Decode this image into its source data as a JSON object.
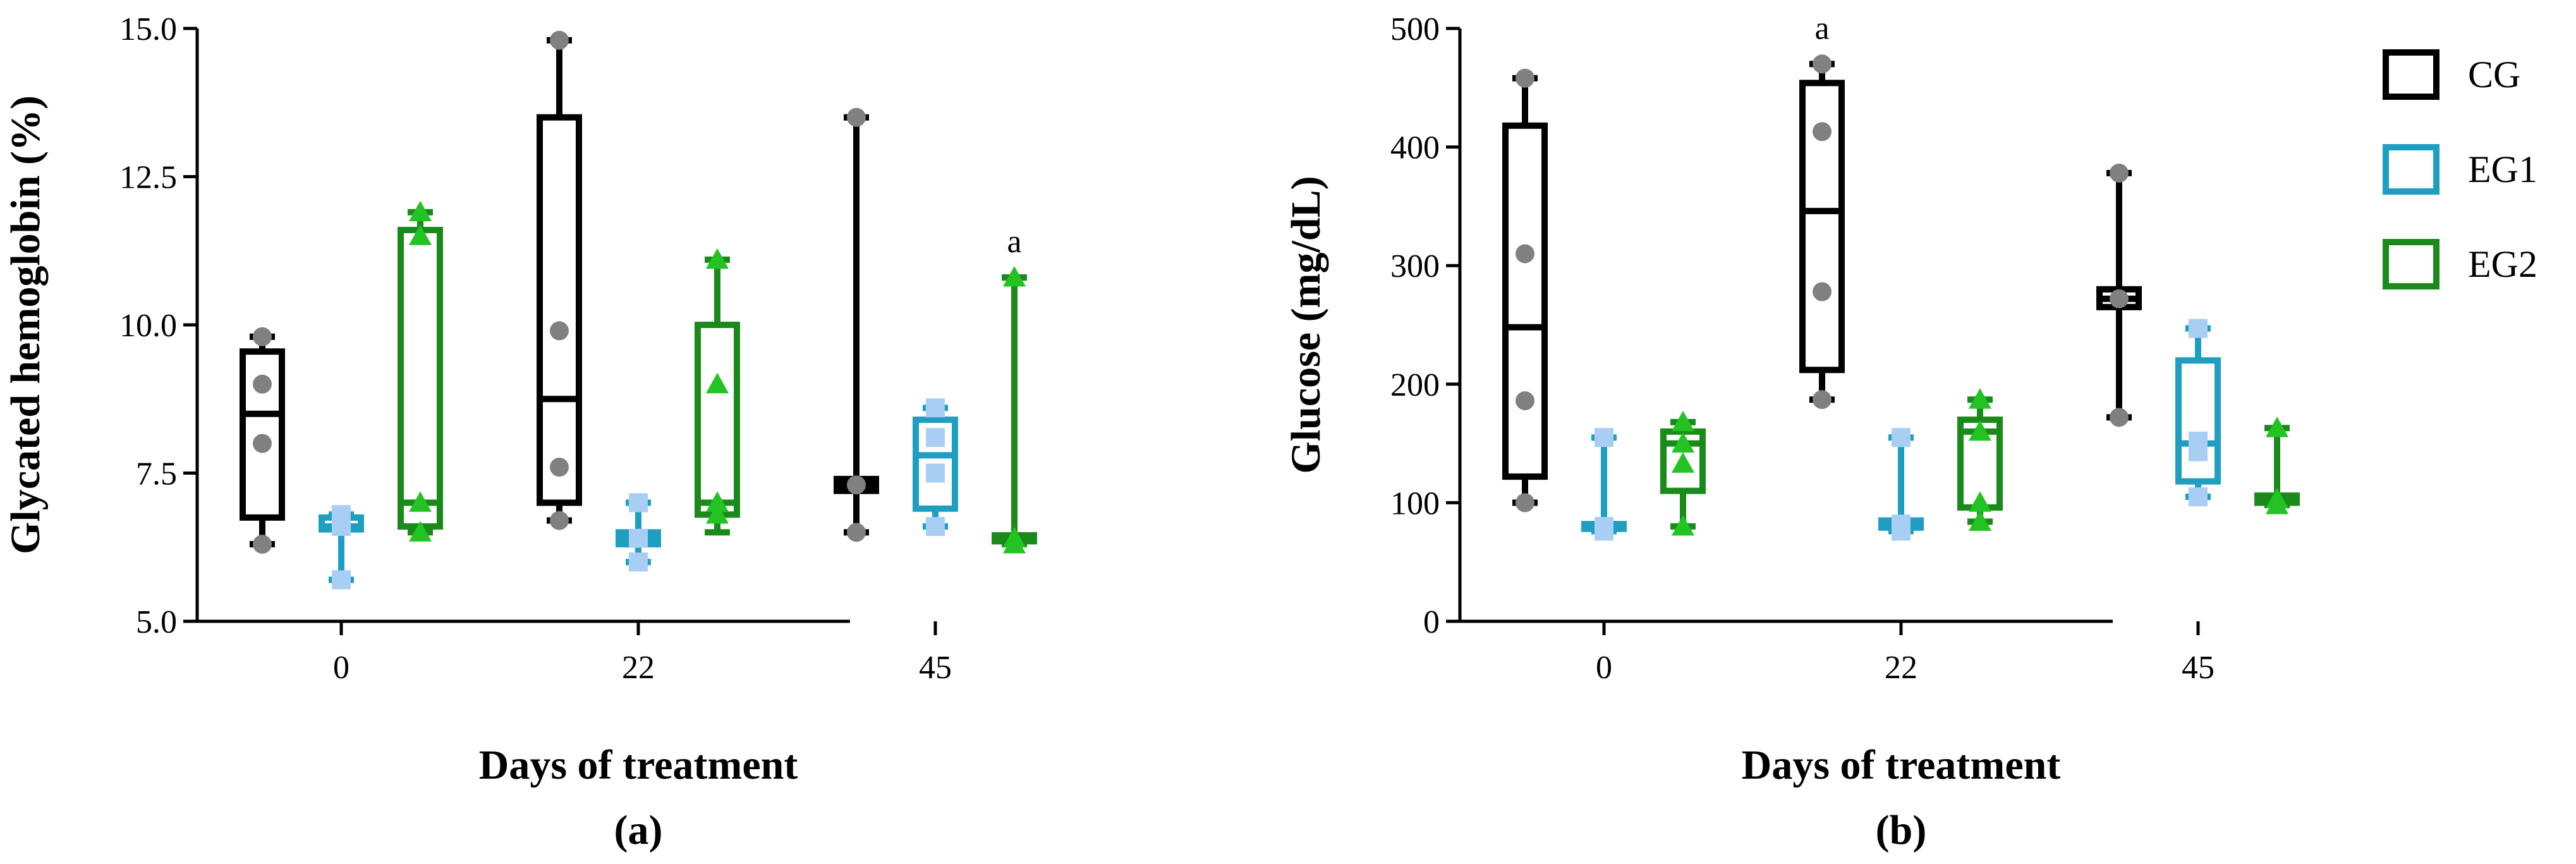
{
  "colors": {
    "CG": "#000000",
    "EG1": "#1e9ec0",
    "EG2": "#1a8a1a",
    "CG_points": "#808080",
    "EG1_points": "#a9cef4",
    "EG2_points": "#22c322"
  },
  "legend": [
    {
      "name": "CG",
      "color_key": "CG"
    },
    {
      "name": "EG1",
      "color_key": "EG1"
    },
    {
      "name": "EG2",
      "color_key": "EG2"
    }
  ],
  "chart_data": [
    {
      "type": "box",
      "panel_label": "(a)",
      "xlabel": "Days of treatment",
      "ylabel": "Glycated hemoglobin (%)",
      "ylim": [
        5.0,
        15.0
      ],
      "yticks": [
        "5.0",
        "7.5",
        "10.0",
        "12.5",
        "15.0"
      ],
      "ytick_values": [
        5.0,
        7.5,
        10.0,
        12.5,
        15.0
      ],
      "categories": [
        "0",
        "22",
        "45"
      ],
      "annotations": [
        {
          "category": "45",
          "series": "EG2",
          "text": "a"
        }
      ],
      "series": [
        {
          "name": "CG",
          "marker": "circle",
          "boxes": [
            {
              "min": 6.3,
              "q1": 6.75,
              "median": 8.5,
              "q3": 9.55,
              "max": 9.8,
              "points": [
                9.8,
                9.0,
                8.0,
                6.3
              ]
            },
            {
              "min": 6.7,
              "q1": 7.0,
              "median": 8.75,
              "q3": 13.5,
              "max": 14.8,
              "points": [
                14.8,
                9.9,
                7.6,
                6.7
              ]
            },
            {
              "min": 6.5,
              "q1": 7.2,
              "median": 7.3,
              "q3": 7.4,
              "max": 13.5,
              "points": [
                13.5,
                7.3,
                6.5
              ]
            }
          ]
        },
        {
          "name": "EG1",
          "marker": "square",
          "boxes": [
            {
              "min": 5.7,
              "q1": 6.55,
              "median": 6.6,
              "q3": 6.75,
              "max": 6.8,
              "points": [
                6.8,
                6.6,
                5.7
              ]
            },
            {
              "min": 6.0,
              "q1": 6.3,
              "median": 6.4,
              "q3": 6.5,
              "max": 7.0,
              "points": [
                7.0,
                6.4,
                6.0
              ]
            },
            {
              "min": 6.6,
              "q1": 6.9,
              "median": 7.8,
              "q3": 8.4,
              "max": 8.6,
              "points": [
                8.6,
                8.1,
                7.5,
                6.6
              ]
            }
          ]
        },
        {
          "name": "EG2",
          "marker": "triangle",
          "boxes": [
            {
              "min": 6.5,
              "q1": 6.6,
              "median": 7.0,
              "q3": 11.6,
              "max": 11.9,
              "points": [
                11.9,
                11.5,
                7.0,
                6.5
              ]
            },
            {
              "min": 6.5,
              "q1": 6.8,
              "median": 7.0,
              "q3": 10.0,
              "max": 11.1,
              "points": [
                11.1,
                9.0,
                7.0,
                6.8
              ]
            },
            {
              "min": 6.3,
              "q1": 6.35,
              "median": 6.4,
              "q3": 6.45,
              "max": 10.8,
              "points": [
                10.8,
                6.4,
                6.3
              ]
            }
          ]
        }
      ]
    },
    {
      "type": "box",
      "panel_label": "(b)",
      "xlabel": "Days of treatment",
      "ylabel": "Glucose (mg/dL)",
      "ylim": [
        0,
        500
      ],
      "yticks": [
        "0",
        "100",
        "200",
        "300",
        "400",
        "500"
      ],
      "ytick_values": [
        0,
        100,
        200,
        300,
        400,
        500
      ],
      "categories": [
        "0",
        "22",
        "45"
      ],
      "annotations": [
        {
          "category": "22",
          "series": "CG",
          "text": "a"
        }
      ],
      "series": [
        {
          "name": "CG",
          "marker": "circle",
          "boxes": [
            {
              "min": 100,
              "q1": 122,
              "median": 248,
              "q3": 418,
              "max": 458,
              "points": [
                458,
                310,
                186,
                100
              ]
            },
            {
              "min": 187,
              "q1": 212,
              "median": 346,
              "q3": 454,
              "max": 470,
              "points": [
                470,
                413,
                278,
                187
              ]
            },
            {
              "min": 172,
              "q1": 265,
              "median": 272,
              "q3": 280,
              "max": 378,
              "points": [
                378,
                272,
                172
              ]
            }
          ]
        },
        {
          "name": "EG1",
          "marker": "square",
          "boxes": [
            {
              "min": 76,
              "q1": 78,
              "median": 80,
              "q3": 82,
              "max": 155,
              "points": [
                155,
                80,
                76
              ]
            },
            {
              "min": 76,
              "q1": 79,
              "median": 82,
              "q3": 85,
              "max": 155,
              "points": [
                155,
                82,
                76
              ]
            },
            {
              "min": 105,
              "q1": 118,
              "median": 150,
              "q3": 220,
              "max": 247,
              "points": [
                247,
                152,
                143,
                105
              ]
            }
          ]
        },
        {
          "name": "EG2",
          "marker": "triangle",
          "boxes": [
            {
              "min": 80,
              "q1": 110,
              "median": 150,
              "q3": 160,
              "max": 168,
              "points": [
                168,
                150,
                133,
                80
              ]
            },
            {
              "min": 84,
              "q1": 96,
              "median": 160,
              "q3": 170,
              "max": 187,
              "points": [
                187,
                160,
                100,
                84
              ]
            },
            {
              "min": 98,
              "q1": 100,
              "median": 103,
              "q3": 106,
              "max": 163,
              "points": [
                163,
                103,
                98
              ]
            }
          ]
        }
      ]
    }
  ]
}
